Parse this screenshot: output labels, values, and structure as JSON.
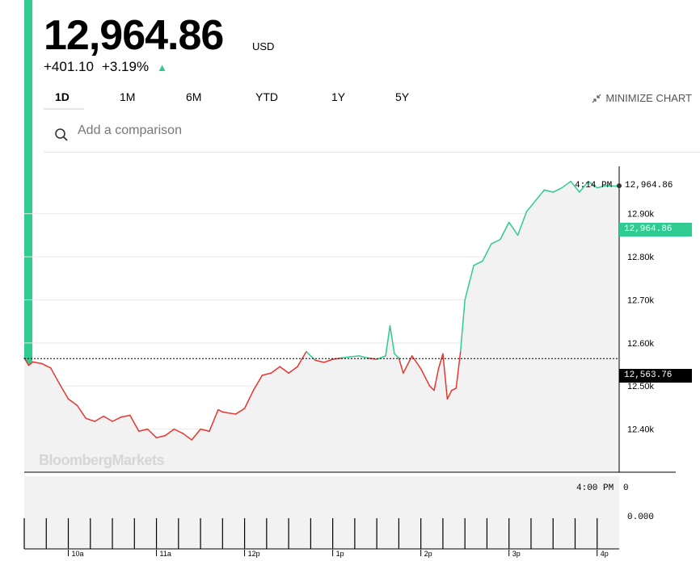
{
  "quote": {
    "price": "12,964.86",
    "currency": "USD",
    "change": "+401.10",
    "change_pct": "+3.19%",
    "up_color": "#2fcb91",
    "down_color": "#e8362f"
  },
  "tabs": [
    {
      "label": "1D",
      "active": true
    },
    {
      "label": "1M",
      "active": false
    },
    {
      "label": "6M",
      "active": false
    },
    {
      "label": "YTD",
      "active": false
    },
    {
      "label": "1Y",
      "active": false
    },
    {
      "label": "5Y",
      "active": false
    }
  ],
  "minimize_label": "MINIMIZE CHART",
  "compare": {
    "placeholder": "Add a comparison"
  },
  "crosshair": {
    "time": "4:14 PM",
    "value": "12,964.86"
  },
  "last_value_label": "12,964.86",
  "prev_close_label": "12,563.76",
  "watermark": "BloombergMarkets",
  "volume": {
    "time": "4:00 PM",
    "value": "0",
    "axis_zero": "0.000"
  },
  "chart_data": {
    "type": "line",
    "x_tick_labels": [
      "10a",
      "11a",
      "12p",
      "1p",
      "2p",
      "3p",
      "4p"
    ],
    "y_tick_labels": [
      "12.40k",
      "12.50k",
      "12.60k",
      "12.70k",
      "12.80k",
      "12.90k"
    ],
    "y_ticks": [
      12400,
      12500,
      12600,
      12700,
      12800,
      12900
    ],
    "ylim": [
      12300,
      13010
    ],
    "xlim": [
      9.5,
      16.25
    ],
    "previous_close": 12563.76,
    "last": 12964.86,
    "series": [
      {
        "x": [
          9.5,
          9.55,
          9.6,
          9.7,
          9.75,
          9.8,
          9.9,
          10.0,
          10.1,
          10.2,
          10.3,
          10.4,
          10.5,
          10.6,
          10.7,
          10.8,
          10.9,
          11.0,
          11.1,
          11.2,
          11.3,
          11.4,
          11.5,
          11.6,
          11.7,
          11.75,
          11.8,
          11.9,
          12.0,
          12.1,
          12.2,
          12.3,
          12.4,
          12.5,
          12.6,
          12.7,
          12.8,
          12.9,
          13.0,
          13.1,
          13.2,
          13.3,
          13.4,
          13.5,
          13.6,
          13.65,
          13.7,
          13.75,
          13.8,
          13.85,
          13.9,
          13.95,
          14.0,
          14.05,
          14.1,
          14.15,
          14.2,
          14.25,
          14.3,
          14.35,
          14.4,
          14.45,
          14.5,
          14.6,
          14.7,
          14.8,
          14.9,
          15.0,
          15.1,
          15.2,
          15.3,
          15.4,
          15.5,
          15.6,
          15.7,
          15.8,
          15.9,
          16.0,
          16.1,
          16.2,
          16.25
        ],
        "y": [
          12565,
          12548,
          12556,
          12552,
          12547,
          12542,
          12505,
          12470,
          12455,
          12425,
          12418,
          12430,
          12418,
          12428,
          12432,
          12395,
          12400,
          12380,
          12385,
          12400,
          12390,
          12375,
          12400,
          12395,
          12445,
          12440,
          12438,
          12435,
          12448,
          12490,
          12525,
          12530,
          12545,
          12530,
          12545,
          12580,
          12560,
          12555,
          12562,
          12565,
          12568,
          12570,
          12565,
          12562,
          12570,
          12640,
          12575,
          12565,
          12530,
          12550,
          12570,
          12555,
          12540,
          12520,
          12500,
          12490,
          12540,
          12575,
          12470,
          12490,
          12495,
          12580,
          12700,
          12780,
          12790,
          12830,
          12840,
          12880,
          12850,
          12905,
          12930,
          12955,
          12950,
          12960,
          12975,
          12950,
          12975,
          12960,
          12965,
          12964,
          12964.86
        ]
      }
    ]
  }
}
